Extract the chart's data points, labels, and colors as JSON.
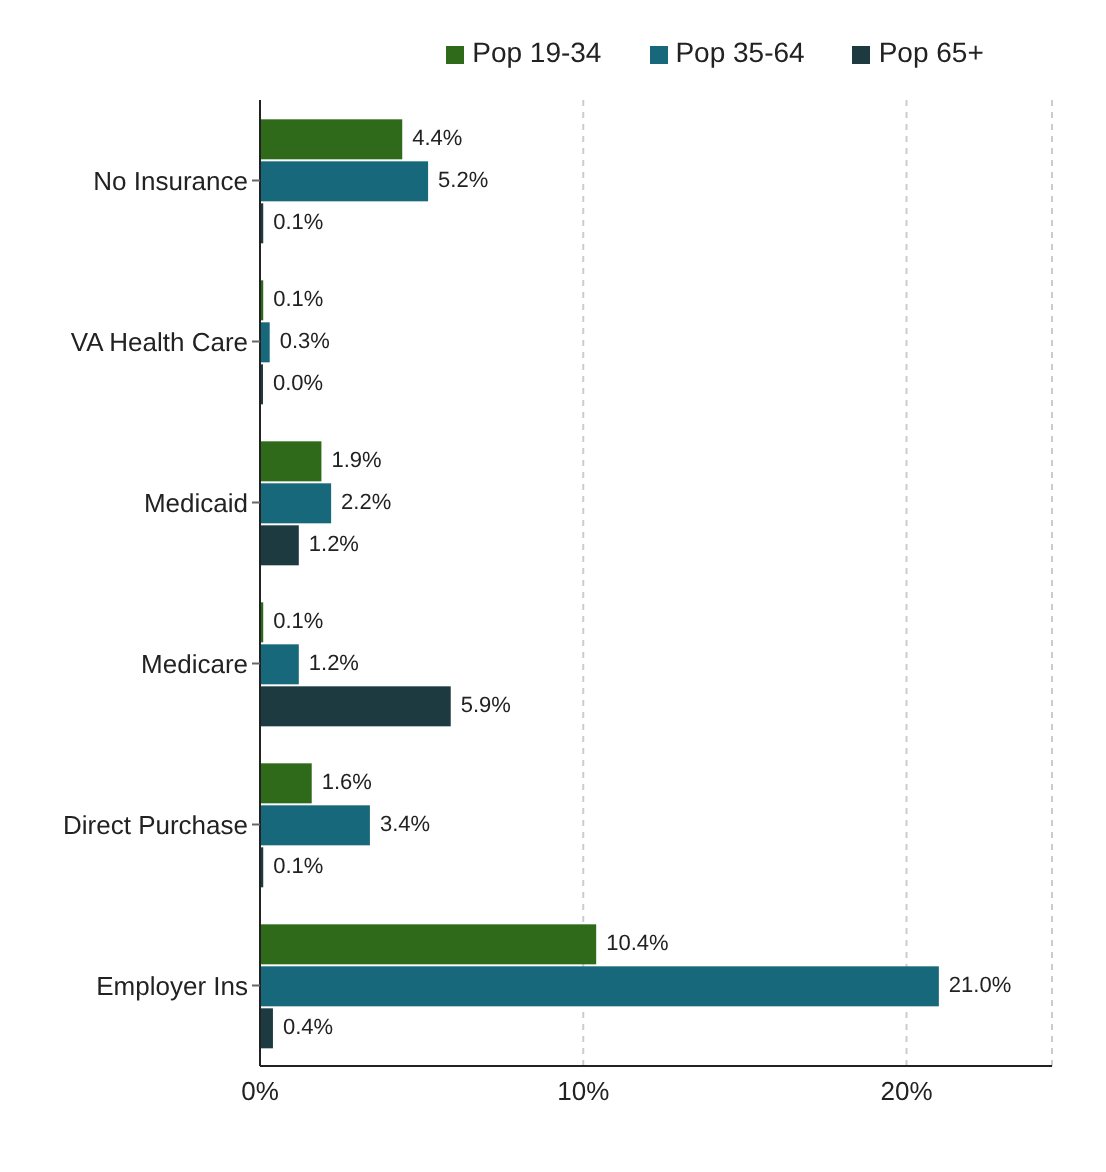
{
  "chart_data": {
    "type": "bar",
    "orientation": "horizontal",
    "categories": [
      "No Insurance",
      "VA Health Care",
      "Medicaid",
      "Medicare",
      "Direct Purchase",
      "Employer Ins"
    ],
    "series": [
      {
        "name": "Pop 19-34",
        "color": "#2f6a1a",
        "values": [
          4.4,
          0.1,
          1.9,
          0.1,
          1.6,
          10.4
        ],
        "value_labels": [
          "4.4%",
          "0.1%",
          "1.9%",
          "0.1%",
          "1.6%",
          "10.4%"
        ]
      },
      {
        "name": "Pop 35-64",
        "color": "#17687a",
        "values": [
          5.2,
          0.3,
          2.2,
          1.2,
          3.4,
          21.0
        ],
        "value_labels": [
          "5.2%",
          "0.3%",
          "2.2%",
          "1.2%",
          "3.4%",
          "21.0%"
        ]
      },
      {
        "name": "Pop 65+",
        "color": "#1c3a40",
        "values": [
          0.1,
          0.0,
          1.2,
          5.9,
          0.1,
          0.4
        ],
        "value_labels": [
          "0.1%",
          "0.0%",
          "1.2%",
          "5.9%",
          "0.1%",
          "0.4%"
        ]
      }
    ],
    "xlim": [
      0,
      24.5
    ],
    "xticks": [
      {
        "value": 0,
        "label": "0%"
      },
      {
        "value": 10,
        "label": "10%"
      },
      {
        "value": 20,
        "label": "20%"
      }
    ],
    "grid": "x",
    "legend": "top"
  }
}
